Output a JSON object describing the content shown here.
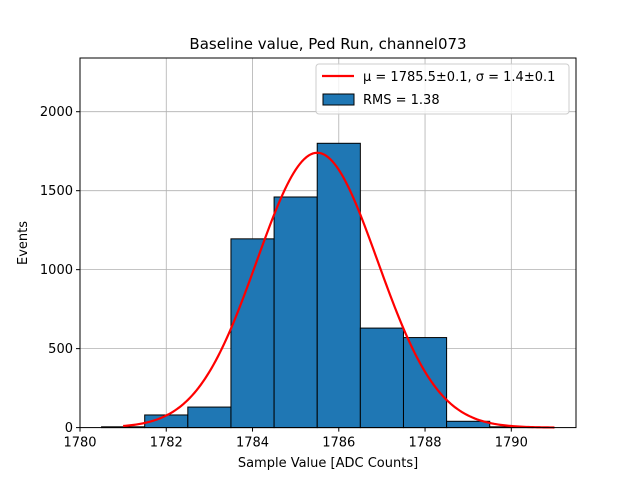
{
  "chart_data": {
    "type": "bar",
    "title": "Baseline value, Ped Run, channel073",
    "xlabel": "Sample Value [ADC Counts]",
    "ylabel": "Events",
    "xlim": [
      1780,
      1791.5
    ],
    "ylim": [
      0,
      2340
    ],
    "xticks": [
      1780,
      1782,
      1784,
      1786,
      1788,
      1790
    ],
    "yticks": [
      0,
      500,
      1000,
      1500,
      2000
    ],
    "grid": true,
    "legend_position": "top-right",
    "bins": [
      {
        "x0": 1780.5,
        "x1": 1781.5,
        "value": 5
      },
      {
        "x0": 1781.5,
        "x1": 1782.5,
        "value": 80
      },
      {
        "x0": 1782.5,
        "x1": 1783.5,
        "value": 130
      },
      {
        "x0": 1783.5,
        "x1": 1784.5,
        "value": 1195
      },
      {
        "x0": 1784.5,
        "x1": 1785.5,
        "value": 1460
      },
      {
        "x0": 1785.5,
        "x1": 1786.5,
        "value": 1800
      },
      {
        "x0": 1786.5,
        "x1": 1787.5,
        "value": 630
      },
      {
        "x0": 1787.5,
        "x1": 1788.5,
        "value": 570
      },
      {
        "x0": 1788.5,
        "x1": 1789.5,
        "value": 40
      },
      {
        "x0": 1789.5,
        "x1": 1790.5,
        "value": 5
      }
    ],
    "fit": {
      "mu": 1785.5,
      "sigma": 1.4,
      "amplitude": 1740,
      "x_range": [
        1781,
        1791
      ]
    },
    "series": [
      {
        "name": "μ = 1785.5±0.1, σ = 1.4±0.1",
        "kind": "line",
        "color": "#ff0000"
      },
      {
        "name": "RMS = 1.38",
        "kind": "bar",
        "color": "#1f77b4"
      }
    ],
    "bar_color": "#1f77b4",
    "edge_color": "#000000",
    "fit_color": "#ff0000"
  }
}
